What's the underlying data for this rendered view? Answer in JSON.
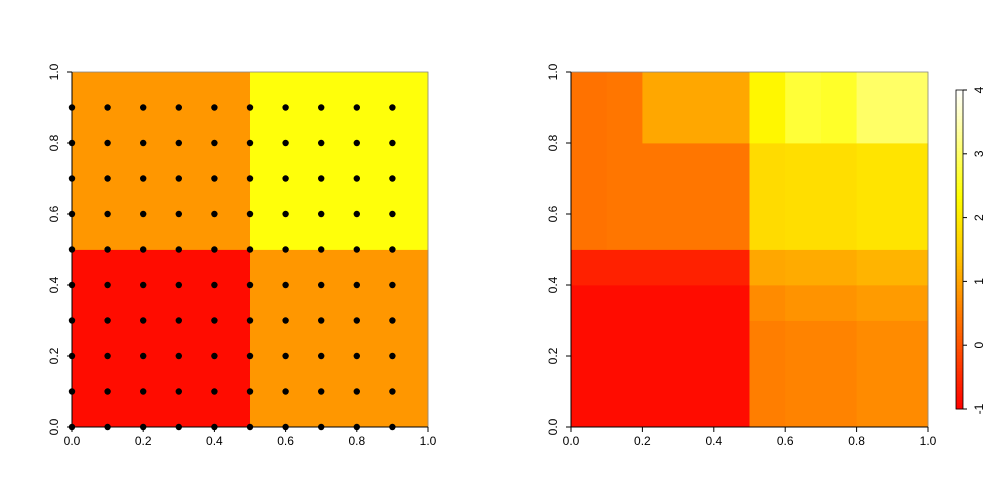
{
  "chart_data": [
    {
      "type": "heatmap",
      "title": "",
      "xlabel": "",
      "ylabel": "",
      "xlim": [
        0,
        1
      ],
      "ylim": [
        0,
        1
      ],
      "x_ticks": [
        "0.0",
        "0.2",
        "0.4",
        "0.6",
        "0.8",
        "1.0"
      ],
      "y_ticks": [
        "0.0",
        "0.2",
        "0.4",
        "0.6",
        "0.8",
        "1.0"
      ],
      "cells": [
        {
          "x0": 0.0,
          "x1": 0.5,
          "y0": 0.0,
          "y1": 0.5,
          "value": -0.85
        },
        {
          "x0": 0.5,
          "x1": 1.0,
          "y0": 0.0,
          "y1": 0.5,
          "value": 0.85
        },
        {
          "x0": 0.0,
          "x1": 0.5,
          "y0": 0.5,
          "y1": 1.0,
          "value": 0.85
        },
        {
          "x0": 0.5,
          "x1": 1.0,
          "y0": 0.5,
          "y1": 1.0,
          "value": 2.4
        }
      ],
      "points": {
        "x": [
          0.0,
          0.1,
          0.2,
          0.3,
          0.4,
          0.5,
          0.6,
          0.7,
          0.8,
          0.9
        ],
        "y": [
          0.0,
          0.1,
          0.2,
          0.3,
          0.4,
          0.5,
          0.6,
          0.7,
          0.8,
          0.9
        ],
        "color": "#000000"
      },
      "grid": false
    },
    {
      "type": "heatmap",
      "title": "",
      "xlabel": "",
      "ylabel": "",
      "xlim": [
        0,
        1
      ],
      "ylim": [
        0,
        1
      ],
      "x_ticks": [
        "0.0",
        "0.2",
        "0.4",
        "0.6",
        "0.8",
        "1.0"
      ],
      "y_ticks": [
        "0.0",
        "0.2",
        "0.4",
        "0.6",
        "0.8",
        "1.0"
      ],
      "cells": [
        {
          "x0": 0.0,
          "x1": 0.5,
          "y0": 0.0,
          "y1": 0.4,
          "value": -0.85
        },
        {
          "x0": 0.0,
          "x1": 0.5,
          "y0": 0.4,
          "y1": 0.5,
          "value": -0.6
        },
        {
          "x0": 0.0,
          "x1": 0.1,
          "y0": 0.5,
          "y1": 1.0,
          "value": 0.4
        },
        {
          "x0": 0.1,
          "x1": 0.5,
          "y0": 0.5,
          "y1": 0.8,
          "value": 0.45
        },
        {
          "x0": 0.1,
          "x1": 0.2,
          "y0": 0.8,
          "y1": 1.0,
          "value": 0.45
        },
        {
          "x0": 0.2,
          "x1": 0.5,
          "y0": 0.8,
          "y1": 1.0,
          "value": 1.05
        },
        {
          "x0": 0.5,
          "x1": 0.6,
          "y0": 0.0,
          "y1": 0.3,
          "value": 0.55
        },
        {
          "x0": 0.6,
          "x1": 0.8,
          "y0": 0.0,
          "y1": 0.3,
          "value": 0.6
        },
        {
          "x0": 0.8,
          "x1": 1.0,
          "y0": 0.0,
          "y1": 0.3,
          "value": 0.7
        },
        {
          "x0": 0.5,
          "x1": 0.6,
          "y0": 0.3,
          "y1": 0.4,
          "value": 0.7
        },
        {
          "x0": 0.6,
          "x1": 0.8,
          "y0": 0.3,
          "y1": 0.4,
          "value": 0.8
        },
        {
          "x0": 0.8,
          "x1": 1.0,
          "y0": 0.3,
          "y1": 0.4,
          "value": 0.9
        },
        {
          "x0": 0.5,
          "x1": 0.6,
          "y0": 0.4,
          "y1": 0.5,
          "value": 1.05
        },
        {
          "x0": 0.6,
          "x1": 0.8,
          "y0": 0.4,
          "y1": 0.5,
          "value": 1.1
        },
        {
          "x0": 0.8,
          "x1": 1.0,
          "y0": 0.4,
          "y1": 0.5,
          "value": 1.2
        },
        {
          "x0": 0.5,
          "x1": 0.6,
          "y0": 0.5,
          "y1": 0.8,
          "value": 1.75
        },
        {
          "x0": 0.6,
          "x1": 0.8,
          "y0": 0.5,
          "y1": 0.8,
          "value": 1.8
        },
        {
          "x0": 0.8,
          "x1": 1.0,
          "y0": 0.5,
          "y1": 0.8,
          "value": 1.9
        },
        {
          "x0": 0.5,
          "x1": 0.6,
          "y0": 0.8,
          "y1": 1.0,
          "value": 2.2
        },
        {
          "x0": 0.6,
          "x1": 0.7,
          "y0": 0.8,
          "y1": 1.0,
          "value": 2.7
        },
        {
          "x0": 0.7,
          "x1": 0.8,
          "y0": 0.8,
          "y1": 1.0,
          "value": 2.6
        },
        {
          "x0": 0.8,
          "x1": 1.0,
          "y0": 0.8,
          "y1": 1.0,
          "value": 3.0
        }
      ],
      "grid": false,
      "legend": {
        "type": "colorbar",
        "placement": "right",
        "range": [
          -1,
          4
        ],
        "ticks": [
          "-1",
          "0",
          "1",
          "2",
          "3",
          "4"
        ],
        "palette": [
          "#ff0000",
          "#ff4400",
          "#ff8800",
          "#ffcc00",
          "#ffff00",
          "#ffff80",
          "#ffffff"
        ]
      }
    }
  ]
}
